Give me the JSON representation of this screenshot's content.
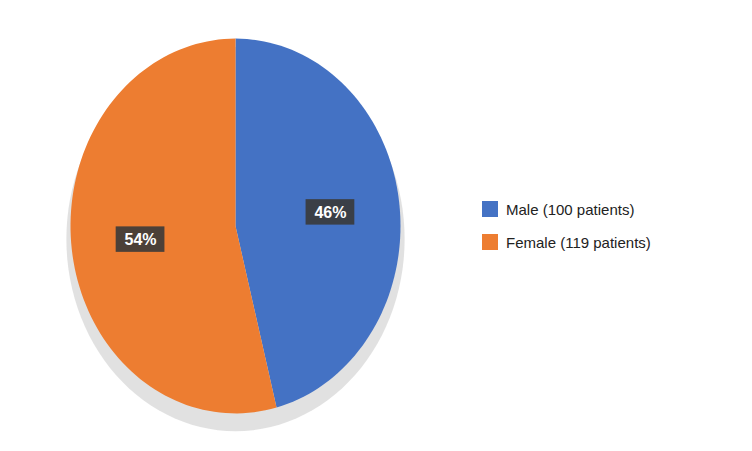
{
  "chart_data": {
    "type": "pie",
    "categories": [
      "Male (100 patients)",
      "Female (119 patients)"
    ],
    "values": [
      46,
      54
    ],
    "value_labels": [
      "46%",
      "54%"
    ],
    "colors": [
      "#4472C4",
      "#ED7D31"
    ],
    "data_labels": true,
    "legend": "right"
  }
}
